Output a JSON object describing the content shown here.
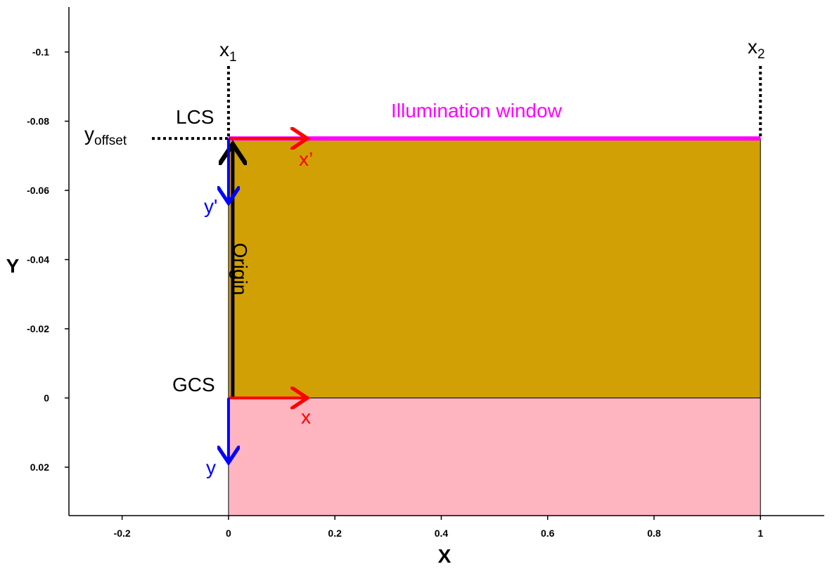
{
  "axes": {
    "x_title": "X",
    "y_title": "Y",
    "x_range": [
      -0.3,
      1.12
    ],
    "y_range": [
      -0.113,
      0.034
    ],
    "x_ticks": [
      {
        "value": -0.2,
        "label": "-0.2"
      },
      {
        "value": 0,
        "label": "0"
      },
      {
        "value": 0.2,
        "label": "0.2"
      },
      {
        "value": 0.4,
        "label": "0.4"
      },
      {
        "value": 0.6,
        "label": "0.6"
      },
      {
        "value": 0.8,
        "label": "0.8"
      },
      {
        "value": 1,
        "label": "1"
      }
    ],
    "y_ticks": [
      {
        "value": -0.1,
        "label": "-0.1"
      },
      {
        "value": -0.08,
        "label": "-0.08"
      },
      {
        "value": -0.06,
        "label": "-0.06"
      },
      {
        "value": -0.04,
        "label": "-0.04"
      },
      {
        "value": -0.02,
        "label": "-0.02"
      },
      {
        "value": 0,
        "label": "0"
      },
      {
        "value": 0.02,
        "label": "0.02"
      }
    ]
  },
  "regions": {
    "gold": {
      "x": [
        0,
        1
      ],
      "y": [
        -0.075,
        0
      ],
      "color": "#D0A005"
    },
    "pink": {
      "x": [
        0,
        1
      ],
      "y": [
        0,
        0.034
      ],
      "color": "#FFB5C0"
    }
  },
  "colors": {
    "red": "#FF0000",
    "blue": "#0000FF",
    "magenta": "#FF00FF",
    "black": "#000000"
  },
  "annotations": {
    "x1": {
      "main": "x",
      "sub": "1",
      "value": 0
    },
    "x2": {
      "main": "x",
      "sub": "2",
      "value": 1
    },
    "lcs": "LCS",
    "gcs": "GCS",
    "y_offset": {
      "main": "y",
      "sub": "offset",
      "value": -0.075
    },
    "illumination": "Illumination window",
    "x_prime": "x’",
    "y_prime": "y'",
    "x_axis": "x",
    "y_axis": "y",
    "origin": "Origin"
  }
}
